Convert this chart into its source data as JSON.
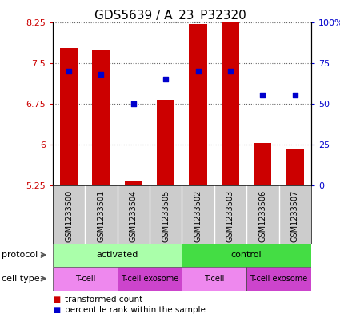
{
  "title": "GDS5639 / A_23_P32320",
  "samples": [
    "GSM1233500",
    "GSM1233501",
    "GSM1233504",
    "GSM1233505",
    "GSM1233502",
    "GSM1233503",
    "GSM1233506",
    "GSM1233507"
  ],
  "transformed_count": [
    7.78,
    7.75,
    5.32,
    6.82,
    8.22,
    8.62,
    6.02,
    5.92
  ],
  "percentile_rank": [
    70,
    68,
    50,
    65,
    70,
    70,
    55,
    55
  ],
  "ylim_left": [
    5.25,
    8.25
  ],
  "yticks_left": [
    5.25,
    6.0,
    6.75,
    7.5,
    8.25
  ],
  "ytick_labels_left": [
    "5.25",
    "6",
    "6.75",
    "7.5",
    "8.25"
  ],
  "ylim_right": [
    0,
    100
  ],
  "yticks_right": [
    0,
    25,
    50,
    75,
    100
  ],
  "ytick_labels_right": [
    "0",
    "25",
    "50",
    "75",
    "100%"
  ],
  "bar_color": "#CC0000",
  "dot_color": "#0000CC",
  "bar_bottom": 5.25,
  "protocol_groups": [
    {
      "label": "activated",
      "start": 0,
      "end": 4,
      "color": "#AAFFAA"
    },
    {
      "label": "control",
      "start": 4,
      "end": 8,
      "color": "#44DD44"
    }
  ],
  "cell_type_groups": [
    {
      "label": "T-cell",
      "start": 0,
      "end": 2,
      "color": "#EE88EE"
    },
    {
      "label": "T-cell exosome",
      "start": 2,
      "end": 4,
      "color": "#CC44CC"
    },
    {
      "label": "T-cell",
      "start": 4,
      "end": 6,
      "color": "#EE88EE"
    },
    {
      "label": "T-cell exosome",
      "start": 6,
      "end": 8,
      "color": "#CC44CC"
    }
  ],
  "legend_items": [
    {
      "label": "transformed count",
      "color": "#CC0000"
    },
    {
      "label": "percentile rank within the sample",
      "color": "#0000CC"
    }
  ],
  "grid_color": "#888888",
  "bar_color_r": "#CC0000",
  "dot_color_b": "#0000CC",
  "label_color_left": "#CC0000",
  "label_color_right": "#0000CC",
  "title_fontsize": 11,
  "tick_fontsize": 8,
  "sample_label_fontsize": 7,
  "row_label_fontsize": 8,
  "legend_fontsize": 7.5
}
